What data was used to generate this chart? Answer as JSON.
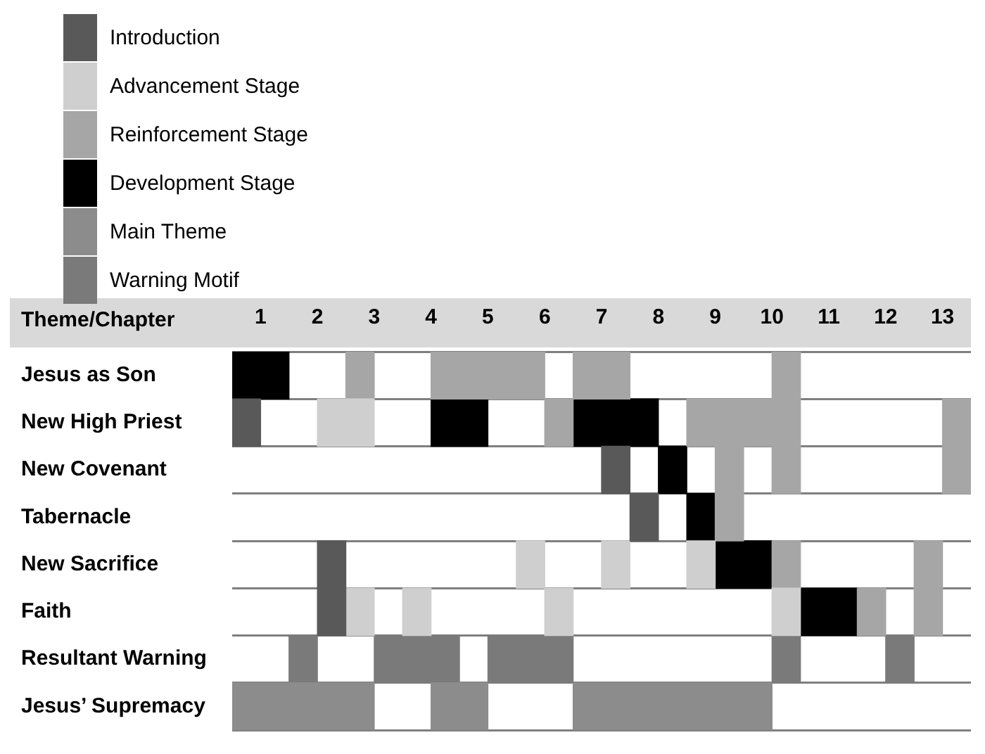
{
  "chart_data": {
    "type": "bar",
    "orientation": "horizontal",
    "xlabel": "Theme/Chapter",
    "categories": [
      "Jesus as Son",
      "New High Priest",
      "New Covenant",
      "Tabernacle",
      "New Sacrifice",
      "Faith",
      "Resultant Warning",
      "Jesus’ Supremacy"
    ],
    "xlim": [
      0.5,
      13.5
    ],
    "xticks": [
      1,
      2,
      3,
      4,
      5,
      6,
      7,
      8,
      9,
      10,
      11,
      12,
      13
    ],
    "grid": "y",
    "legend": "top left",
    "series": [
      {
        "name": "Introduction",
        "color": "#595959",
        "x": [
          "New High Priest",
          "New Covenant",
          "Tabernacle",
          "New Sacrifice",
          "Faith"
        ],
        "base": [
          0.5,
          7,
          7.5,
          2,
          2
        ],
        "values": [
          0.5,
          0.5,
          0.5,
          0.5,
          0.5
        ]
      },
      {
        "name": "Advancement Stage",
        "color": "#cfcfcf",
        "x": [
          "New High Priest",
          "New Sacrifice",
          "New Sacrifice",
          "New Sacrifice",
          "Faith",
          "Faith",
          "Faith",
          "Faith"
        ],
        "base": [
          2,
          5.5,
          7,
          8.5,
          2.5,
          3.5,
          6,
          10
        ],
        "values": [
          1,
          0.5,
          0.5,
          0.5,
          0.5,
          0.5,
          0.5,
          0.5
        ]
      },
      {
        "name": "Reinforcement Stage",
        "color": "#a6a6a6",
        "x": [
          "Jesus as Son",
          "Jesus as Son",
          "Jesus as Son",
          "Jesus as Son",
          "New High Priest",
          "New High Priest",
          "New High Priest",
          "New Covenant",
          "New Covenant",
          "New Covenant",
          "Tabernacle",
          "New Sacrifice",
          "New Sacrifice",
          "Faith",
          "Faith"
        ],
        "base": [
          2.5,
          4,
          6.5,
          10,
          6,
          8.5,
          13,
          9,
          10,
          13,
          9,
          10,
          12.5,
          11.5,
          12.5
        ],
        "values": [
          0.5,
          2,
          1,
          0.5,
          0.5,
          2,
          0.5,
          0.5,
          0.5,
          0.5,
          0.5,
          0.5,
          0.5,
          0.5,
          0.5
        ]
      },
      {
        "name": "Development Stage",
        "color": "#000000",
        "x": [
          "Jesus as Son",
          "New High Priest",
          "New High Priest",
          "New Covenant",
          "Tabernacle",
          "New Sacrifice",
          "Faith"
        ],
        "base": [
          0.5,
          4,
          6.5,
          8,
          8.5,
          9,
          10.5
        ],
        "values": [
          1,
          1,
          1.5,
          0.5,
          0.5,
          1,
          1
        ]
      },
      {
        "name": "Main Theme",
        "color": "#8c8c8c",
        "x": [
          "Jesus’ Supremacy",
          "Jesus’ Supremacy",
          "Jesus’ Supremacy"
        ],
        "base": [
          0.5,
          4,
          6.5
        ],
        "values": [
          2.5,
          1,
          3.5
        ]
      },
      {
        "name": "Warning Motif",
        "color": "#7a7a7a",
        "x": [
          "Resultant Warning",
          "Resultant Warning",
          "Resultant Warning",
          "Resultant Warning",
          "Resultant Warning"
        ],
        "base": [
          1.5,
          3,
          5,
          10,
          12
        ],
        "values": [
          0.5,
          1.5,
          1.5,
          0.5,
          0.5
        ]
      }
    ]
  }
}
